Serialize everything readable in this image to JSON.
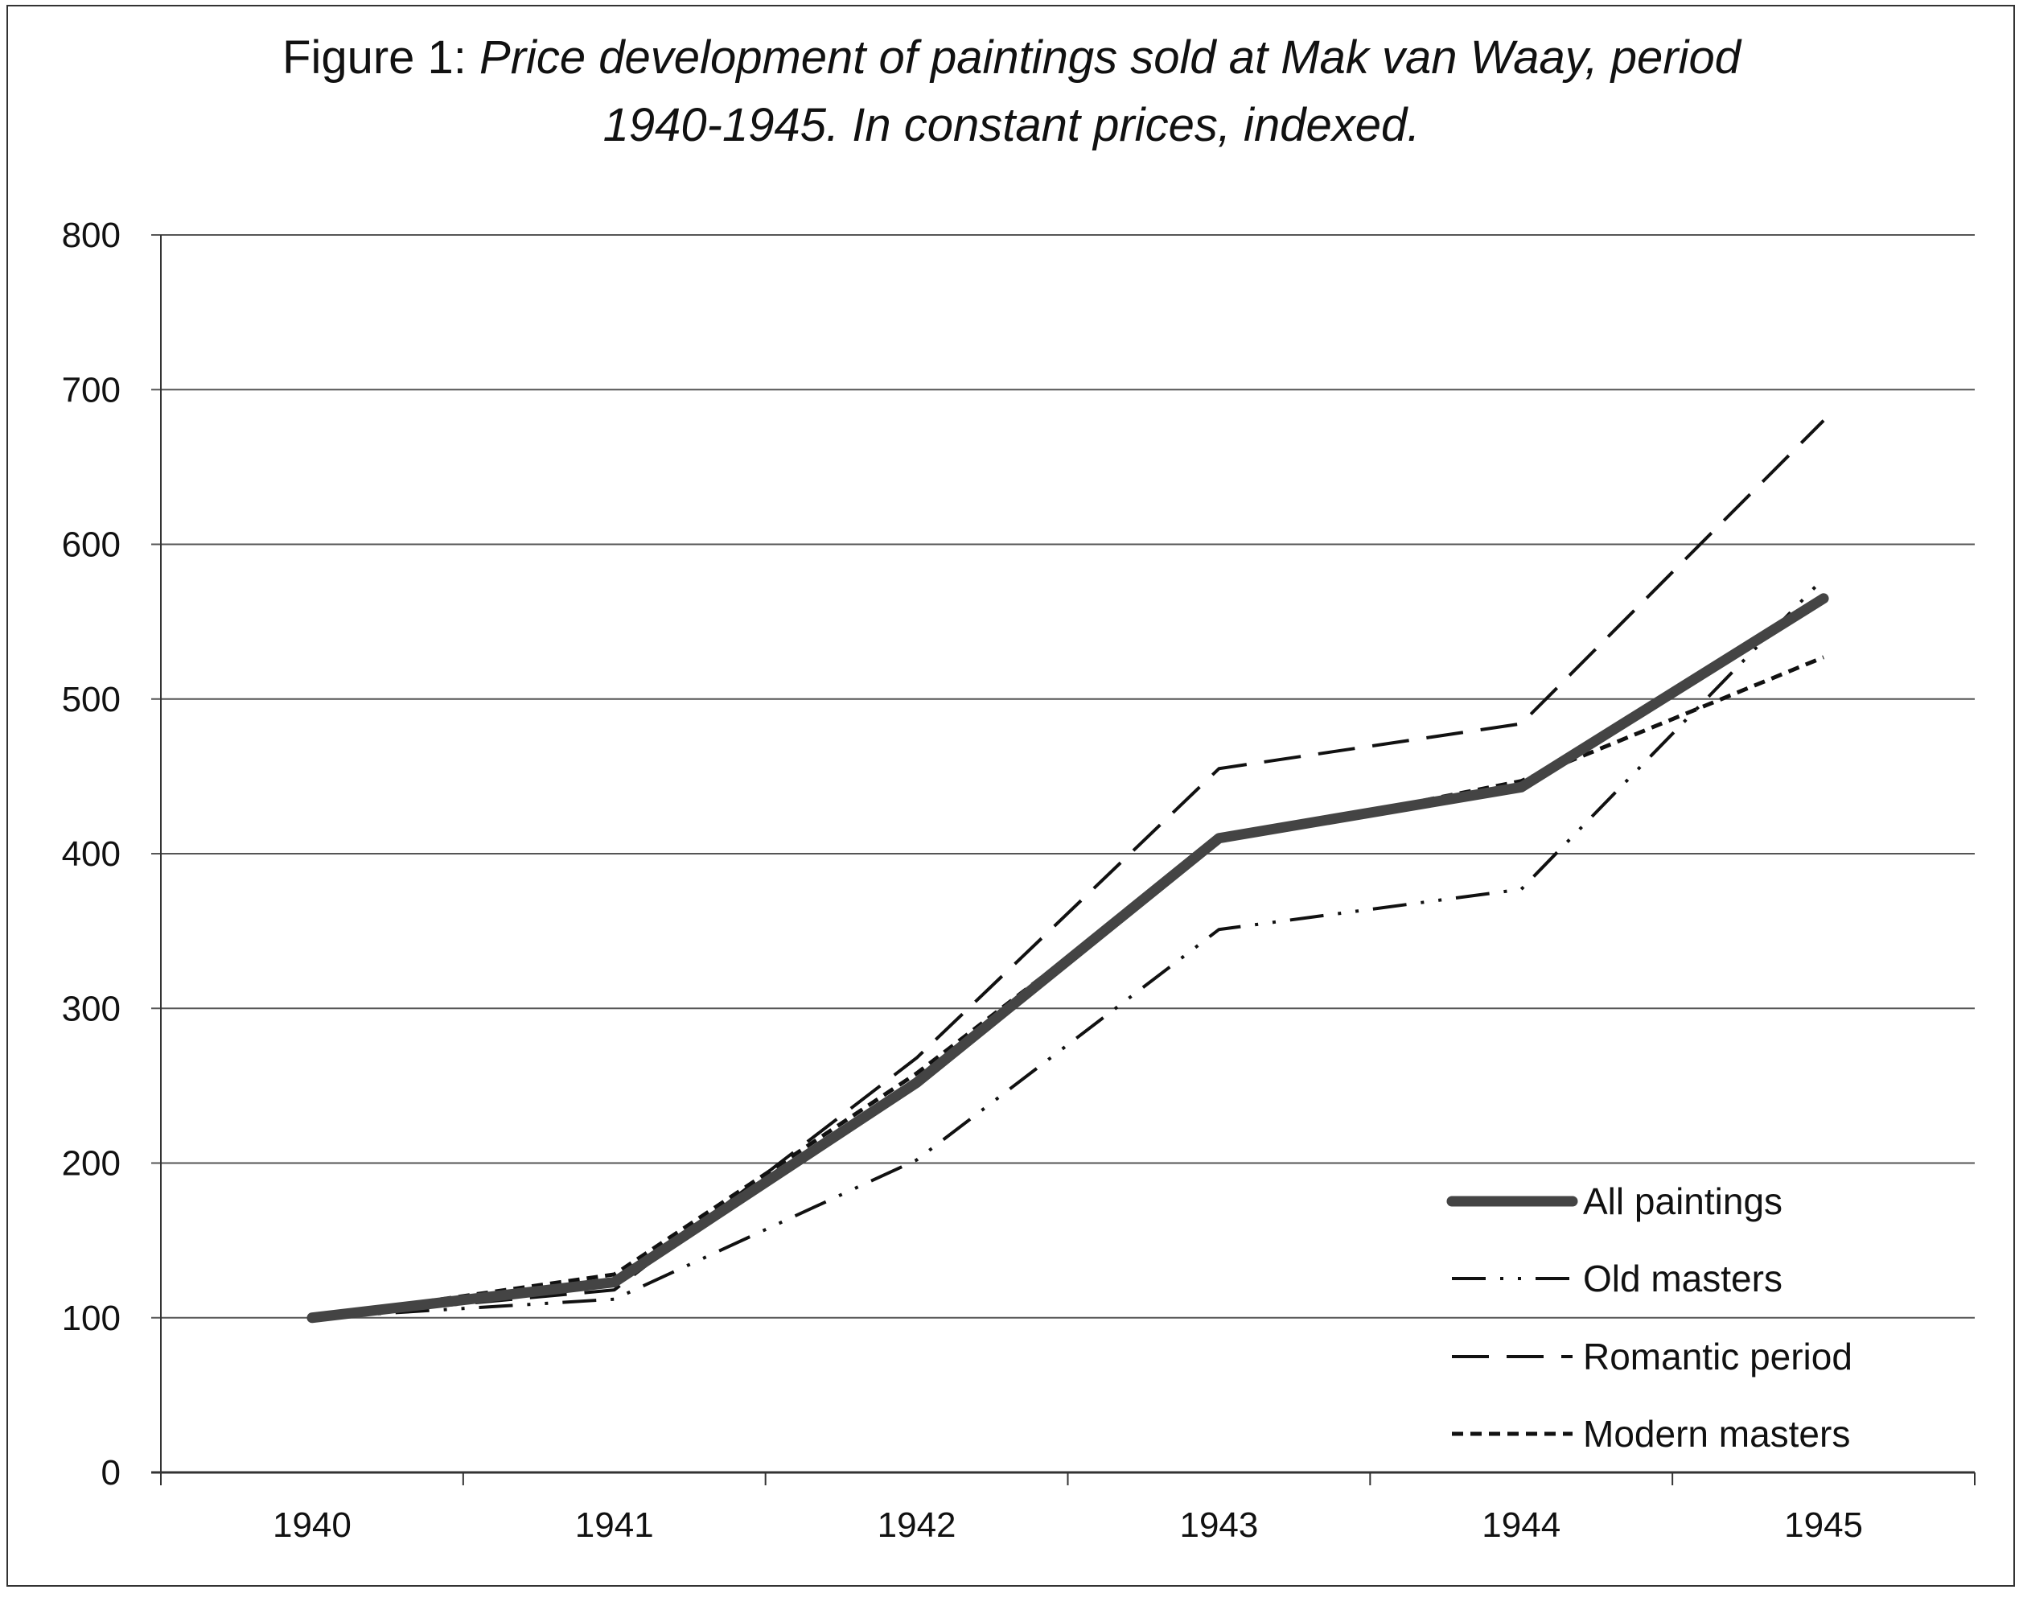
{
  "title": {
    "prefix": "Figure 1:",
    "line1_italic": "Price development of paintings sold at Mak van Waay, period",
    "line2_italic": "1940-1945. In constant prices, indexed."
  },
  "chart_data": {
    "type": "line",
    "title": "Figure 1: Price development of paintings sold at Mak van Waay, period 1940-1945. In constant prices, indexed.",
    "xlabel": "",
    "ylabel": "",
    "categories": [
      "1940",
      "1941",
      "1942",
      "1943",
      "1944",
      "1945"
    ],
    "ylim": [
      0,
      800
    ],
    "yticks": [
      0,
      100,
      200,
      300,
      400,
      500,
      600,
      700,
      800
    ],
    "grid": true,
    "legend_position": "bottom-right",
    "series": [
      {
        "name": "All paintings",
        "values": [
          100,
          123,
          252,
          410,
          443,
          565
        ],
        "style": "thick",
        "color": "#444444"
      },
      {
        "name": "Old masters",
        "values": [
          100,
          112,
          202,
          351,
          377,
          578
        ],
        "style": "dash-dot-dot",
        "color": "#111111"
      },
      {
        "name": "Romantic period",
        "values": [
          100,
          118,
          268,
          455,
          484,
          680
        ],
        "style": "long-dash",
        "color": "#111111"
      },
      {
        "name": "Modern masters",
        "values": [
          100,
          128,
          258,
          408,
          447,
          527
        ],
        "style": "short-dash",
        "color": "#111111"
      }
    ]
  }
}
